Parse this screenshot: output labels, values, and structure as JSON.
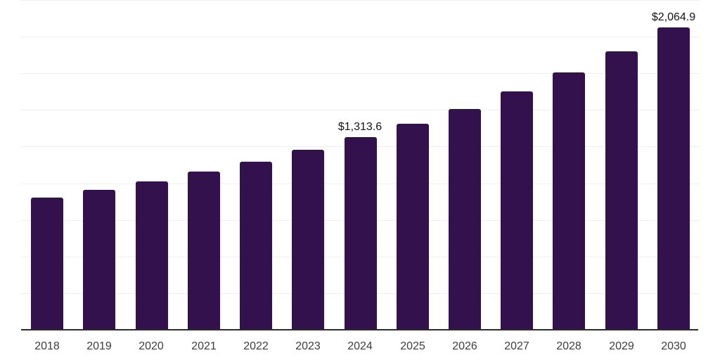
{
  "page": {
    "background_color": "#ffffff"
  },
  "chart_data": {
    "type": "bar",
    "title": "",
    "xlabel": "",
    "ylabel": "",
    "categories": [
      "2018",
      "2019",
      "2020",
      "2021",
      "2022",
      "2023",
      "2024",
      "2025",
      "2026",
      "2027",
      "2028",
      "2029",
      "2030"
    ],
    "values": [
      902.1,
      955.0,
      1013.5,
      1079.5,
      1146.8,
      1225.8,
      1313.6,
      1406.2,
      1506.5,
      1625.0,
      1756.1,
      1902.0,
      2064.9
    ],
    "annotations": [
      {
        "category": "2024",
        "text": "$1,313.6"
      },
      {
        "category": "2030",
        "text": "$2,064.9"
      }
    ],
    "ylim": [
      0,
      2250
    ],
    "grid_step": 250,
    "grid": true,
    "legend": false,
    "y_axis_labels_visible": false,
    "bar_color": "#33114C",
    "grid_color": "#efefef",
    "axis_color": "#2b2b2b",
    "tick_label_color": "#3d3d3d",
    "value_label_color": "#141414"
  }
}
